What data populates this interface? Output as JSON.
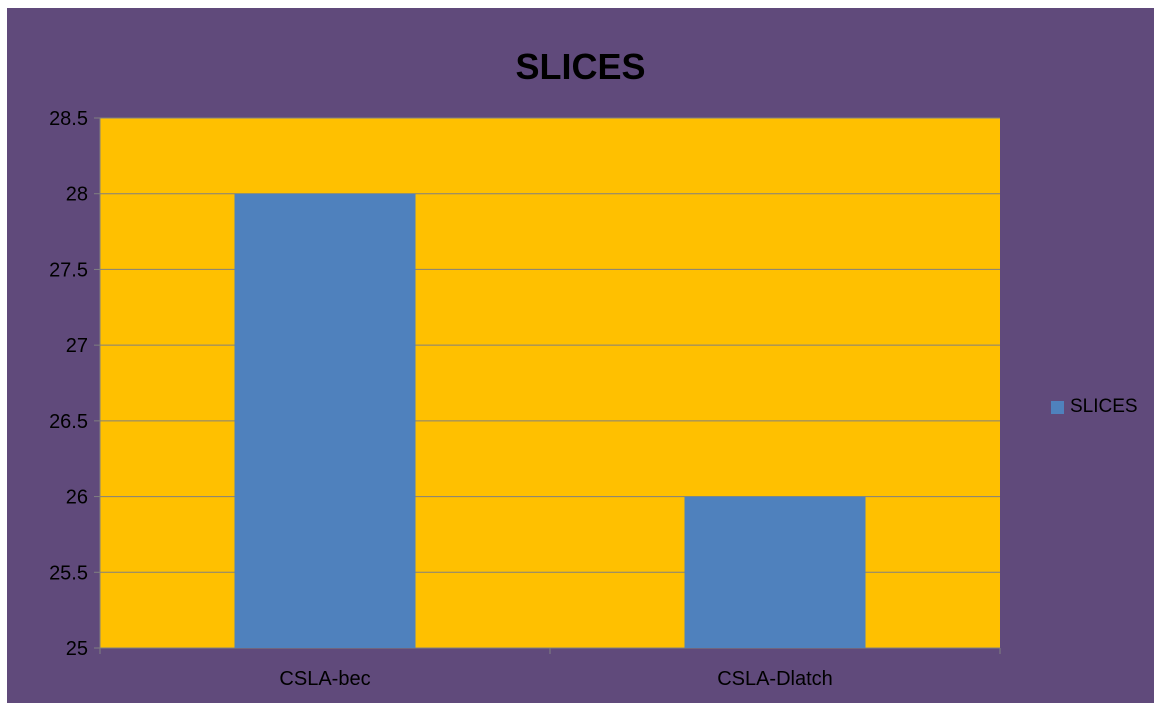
{
  "chart_data": {
    "type": "bar",
    "title": "SLICES",
    "categories": [
      "CSLA-bec",
      "CSLA-Dlatch"
    ],
    "series": [
      {
        "name": "SLICES",
        "values": [
          28,
          26
        ],
        "color": "#4f81bd"
      }
    ],
    "ylim": [
      25,
      28.5
    ],
    "y_ticks": [
      25,
      25.5,
      26,
      26.5,
      27,
      27.5,
      28,
      28.5
    ],
    "grid": true,
    "legend_position": "right",
    "plot_background": "#ffc000",
    "chart_background": "#604a7b"
  }
}
